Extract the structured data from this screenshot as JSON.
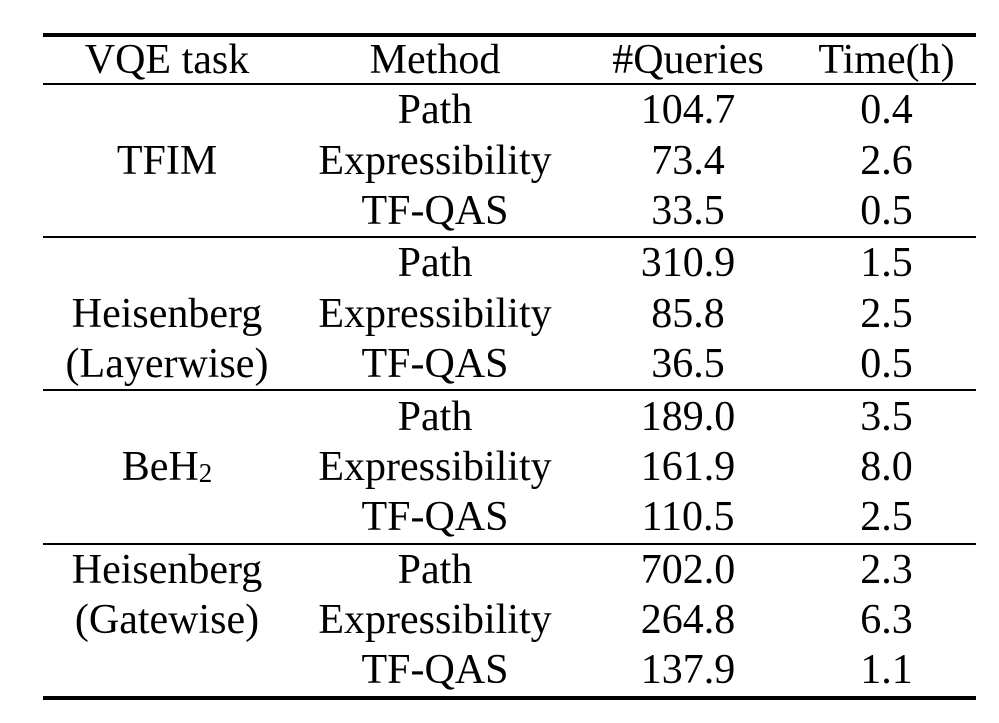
{
  "colors": {
    "background": "#ffffff",
    "text": "#000000",
    "rules": "#000000"
  },
  "table": {
    "columns": [
      "VQE task",
      "Method",
      "#Queries",
      "Time(h)"
    ],
    "groups": [
      {
        "task_lines": [
          "TFIM"
        ],
        "rows": [
          {
            "method": "Path",
            "queries": "104.7",
            "time": "0.4"
          },
          {
            "method": "Expressibility",
            "queries": "73.4",
            "time": "2.6"
          },
          {
            "method": "TF-QAS",
            "queries": "33.5",
            "time": "0.5"
          }
        ]
      },
      {
        "task_lines": [
          "Heisenberg",
          "(Layerwise)"
        ],
        "rows": [
          {
            "method": "Path",
            "queries": "310.9",
            "time": "1.5"
          },
          {
            "method": "Expressibility",
            "queries": "85.8",
            "time": "2.5"
          },
          {
            "method": "TF-QAS",
            "queries": "36.5",
            "time": "0.5"
          }
        ]
      },
      {
        "task_lines": [
          "BeH"
        ],
        "task_subscript": "2",
        "rows": [
          {
            "method": "Path",
            "queries": "189.0",
            "time": "3.5"
          },
          {
            "method": "Expressibility",
            "queries": "161.9",
            "time": "8.0"
          },
          {
            "method": "TF-QAS",
            "queries": "110.5",
            "time": "2.5"
          }
        ]
      },
      {
        "task_lines": [
          "Heisenberg",
          "(Gatewise)"
        ],
        "rows": [
          {
            "method": "Path",
            "queries": "702.0",
            "time": "2.3"
          },
          {
            "method": "Expressibility",
            "queries": "264.8",
            "time": "6.3"
          },
          {
            "method": "TF-QAS",
            "queries": "137.9",
            "time": "1.1"
          }
        ]
      }
    ]
  }
}
